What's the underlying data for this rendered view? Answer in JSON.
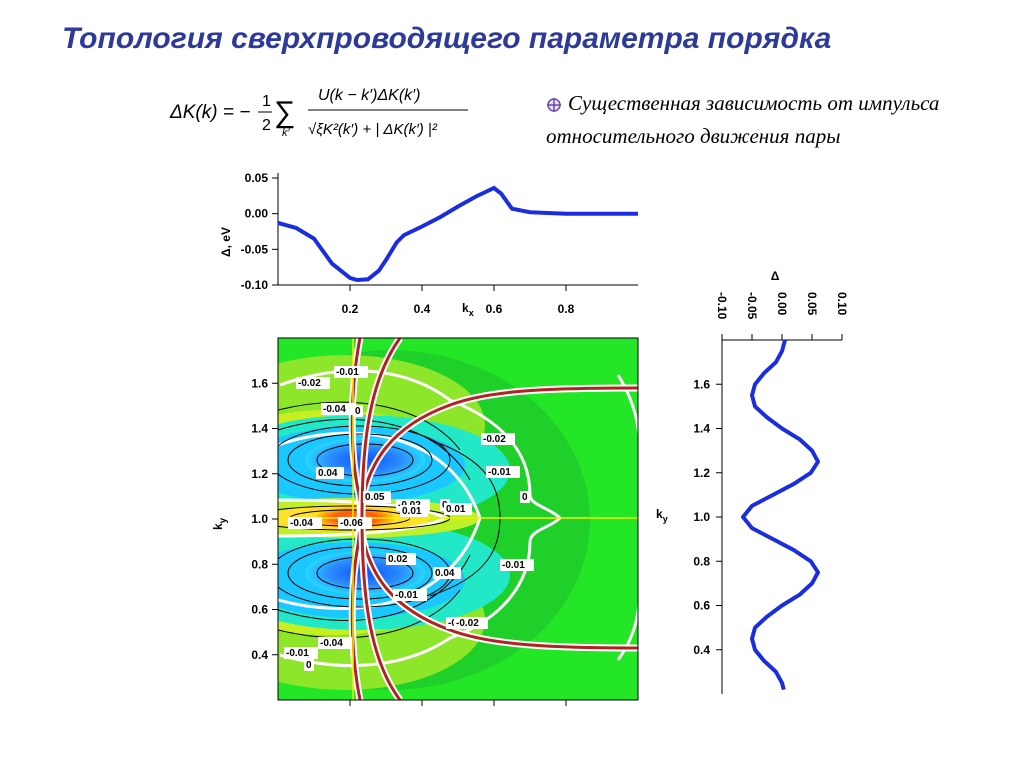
{
  "title": "Топология сверхпроводящего параметра порядка",
  "formula": {
    "lhs": "ΔK(k) = −",
    "frac_num": "1",
    "frac_den": "2",
    "sum_sub": "k′",
    "num": "U(k − k′)ΔK(k′)",
    "den": "√ξK²(k′) + | ΔK(k′) |²"
  },
  "bullet": {
    "icon": "crosshair-circle-icon",
    "text": "Существенная зависимость от импульса относительного движения пары"
  },
  "colors": {
    "title": "#2e3a9a",
    "curve": "#1a2ee0",
    "fermi_surface": "#b22222"
  },
  "chart_data": [
    {
      "type": "line",
      "title": "",
      "xlabel": "k",
      "xlabel_sub": "x",
      "ylabel": "Δ, eV",
      "xlim": [
        0,
        1
      ],
      "ylim": [
        -0.1,
        0.05
      ],
      "yticks": [
        "0.05",
        "0.00",
        "-0.05",
        "-0.10"
      ],
      "xticks": [
        "0.2",
        "0.4",
        "0.6",
        "0.8"
      ],
      "series": [
        {
          "x": [
            0.0,
            0.05,
            0.1,
            0.15,
            0.2,
            0.22,
            0.25,
            0.28,
            0.3,
            0.33,
            0.35,
            0.4,
            0.45,
            0.5,
            0.55,
            0.6,
            0.62,
            0.65,
            0.7,
            0.8,
            0.9,
            1.0
          ],
          "y": [
            -0.013,
            -0.02,
            -0.035,
            -0.07,
            -0.09,
            -0.093,
            -0.092,
            -0.08,
            -0.065,
            -0.04,
            -0.03,
            -0.018,
            -0.005,
            0.01,
            0.024,
            0.036,
            0.028,
            0.007,
            0.002,
            0.0,
            0.0,
            0.0
          ]
        }
      ]
    },
    {
      "type": "heatmap",
      "title": "",
      "xlabel": "",
      "ylabel": "k",
      "ylabel_sub": "y",
      "xlim": [
        0,
        1
      ],
      "ylim": [
        0.2,
        1.8
      ],
      "yticks": [
        "1.6",
        "1.4",
        "1.2",
        "1.0",
        "0.8",
        "0.6",
        "0.4"
      ],
      "contour_labels": [
        "-0.01",
        "-0.02",
        "-0.04",
        "0",
        "0.04",
        "0.05",
        "-0.02",
        "0",
        "-0.02",
        "-0.01",
        "0",
        "0.01",
        "-0.04",
        "-0.06",
        "0.01",
        "0.02",
        "0.04",
        "0.02",
        "-0.01",
        "-0.01",
        "-0.02",
        "-0.04",
        "-0.01",
        "0",
        "-0.02"
      ]
    },
    {
      "type": "line",
      "title": "",
      "xlabel": "Δ",
      "ylabel": "k",
      "ylabel_sub": "y",
      "xlim": [
        -0.1,
        0.1
      ],
      "ylim": [
        0.2,
        1.8
      ],
      "xticks": [
        "-0.10",
        "-0.05",
        "0.00",
        "0.05",
        "0.10"
      ],
      "yticks": [
        "1.6",
        "1.4",
        "1.2",
        "1.0",
        "0.8",
        "0.6",
        "0.4"
      ],
      "series": [
        {
          "y": [
            1.8,
            1.75,
            1.7,
            1.65,
            1.6,
            1.55,
            1.5,
            1.45,
            1.4,
            1.35,
            1.3,
            1.25,
            1.2,
            1.15,
            1.1,
            1.05,
            1.0,
            0.95,
            0.9,
            0.85,
            0.8,
            0.75,
            0.7,
            0.65,
            0.6,
            0.55,
            0.5,
            0.45,
            0.4,
            0.35,
            0.3,
            0.25,
            0.22
          ],
          "x": [
            0.005,
            0.0,
            -0.01,
            -0.03,
            -0.045,
            -0.05,
            -0.045,
            -0.025,
            0.0,
            0.03,
            0.05,
            0.06,
            0.048,
            0.02,
            -0.015,
            -0.05,
            -0.065,
            -0.05,
            -0.015,
            0.02,
            0.048,
            0.06,
            0.05,
            0.03,
            0.0,
            -0.025,
            -0.045,
            -0.05,
            -0.045,
            -0.03,
            -0.01,
            0.0,
            0.003
          ]
        }
      ]
    }
  ]
}
